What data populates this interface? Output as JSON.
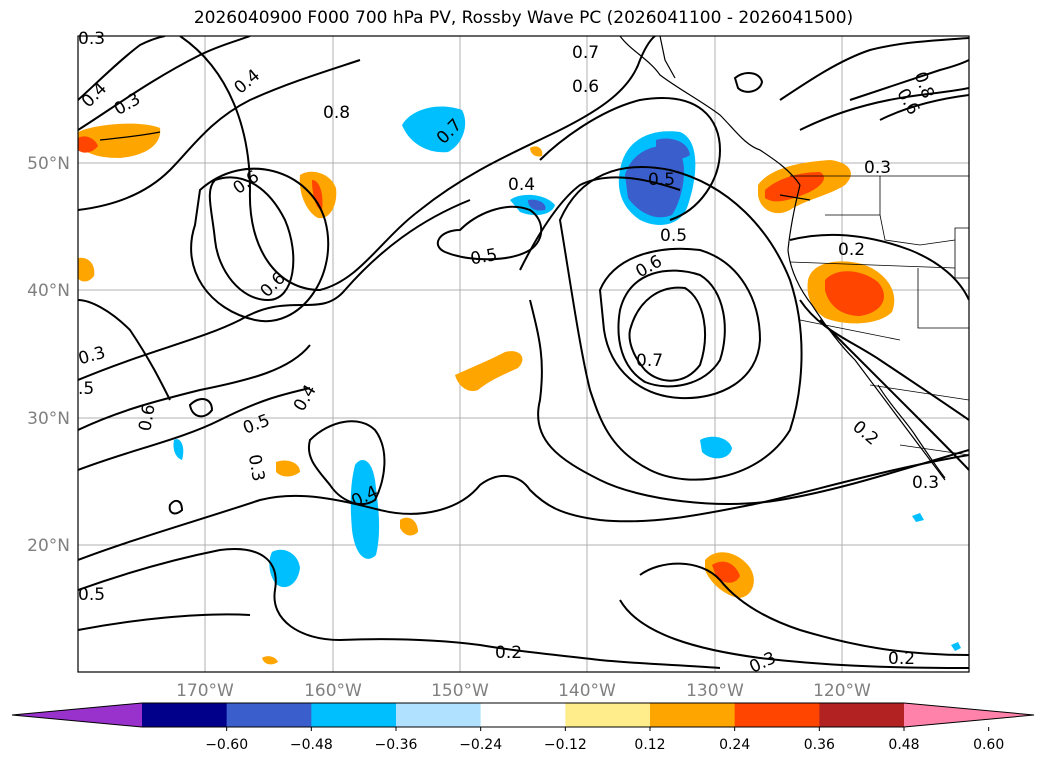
{
  "title": "2026040900 F000 700 hPa PV, Rossby Wave PC (2026041100 - 2026041500)",
  "map": {
    "region": "North Pacific / western North America",
    "lon_range": [
      -180,
      -110
    ],
    "lat_range": [
      10,
      60
    ],
    "lat_ticks": [
      {
        "value": 50,
        "label": "50°N"
      },
      {
        "value": 40,
        "label": "40°N"
      },
      {
        "value": 30,
        "label": "30°N"
      },
      {
        "value": 20,
        "label": "20°N"
      }
    ],
    "lon_ticks": [
      {
        "value": -170,
        "label": "170°W"
      },
      {
        "value": -160,
        "label": "160°W"
      },
      {
        "value": -150,
        "label": "150°W"
      },
      {
        "value": -140,
        "label": "140°W"
      },
      {
        "value": -130,
        "label": "130°W"
      },
      {
        "value": -120,
        "label": "120°W"
      }
    ],
    "tick_label_color": "#808080",
    "contour_labels": [
      "0.4",
      "0.3",
      "0.8",
      "0.4",
      "0.7",
      "0.6",
      "0.8",
      "0.6",
      "0.6",
      "0.6",
      "0.7",
      "0.5",
      "0.4",
      "0.5",
      "0.5",
      "0.5",
      "0.3",
      "0.2",
      "0.6",
      "0.7",
      "0.3",
      ".5",
      "0.6",
      "0.4",
      "0.5",
      "0.3",
      "0.4",
      "0.2",
      "0.3",
      "0.2",
      "0.3",
      "0.2",
      "0.3"
    ]
  },
  "colorbar": {
    "ticks": [
      "−0.60",
      "−0.48",
      "−0.36",
      "−0.24",
      "−0.12",
      "0.12",
      "0.24",
      "0.36",
      "0.48",
      "0.60"
    ],
    "colors": [
      "#9932cc",
      "#00008b",
      "#3a5fcd",
      "#00bfff",
      "#b0e2ff",
      "#ffffff",
      "#ffec8b",
      "#ffa500",
      "#ff4500",
      "#b22222",
      "#ff82ab"
    ]
  }
}
